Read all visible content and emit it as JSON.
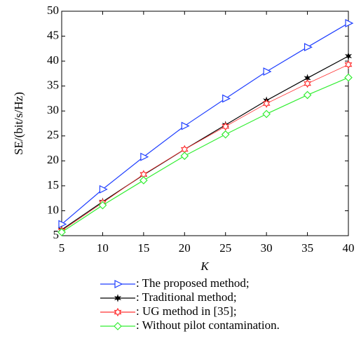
{
  "chart_data": {
    "type": "line",
    "x_label": "K",
    "y_label": "SE/(bit/s/Hz)",
    "x": [
      5,
      10,
      15,
      20,
      25,
      30,
      35,
      40
    ],
    "xlim": [
      5,
      40
    ],
    "xticks": [
      5,
      10,
      15,
      20,
      25,
      30,
      35,
      40
    ],
    "ylim": [
      5,
      50
    ],
    "yticks": [
      5,
      10,
      15,
      20,
      25,
      30,
      35,
      40,
      45,
      50
    ],
    "series": [
      {
        "name": ": The proposed method;",
        "color": "#1f3fff",
        "marker": "triangle-right",
        "values": [
          7.3,
          14.3,
          20.8,
          27.0,
          32.5,
          37.9,
          42.8,
          47.6
        ]
      },
      {
        "name": ": Traditional method;",
        "color": "#000000",
        "marker": "star",
        "values": [
          6.2,
          11.8,
          17.2,
          22.3,
          27.2,
          32.1,
          36.6,
          41.0
        ]
      },
      {
        "name": ": UG method in [35];",
        "color": "#ff3333",
        "marker": "hexagram",
        "values": [
          6.0,
          11.6,
          17.3,
          22.3,
          26.9,
          31.5,
          35.5,
          39.3
        ]
      },
      {
        "name": ": Without pilot contamination.",
        "color": "#33ee33",
        "marker": "diamond",
        "values": [
          5.7,
          11.1,
          16.1,
          21.0,
          25.3,
          29.4,
          33.2,
          36.7
        ]
      }
    ]
  }
}
